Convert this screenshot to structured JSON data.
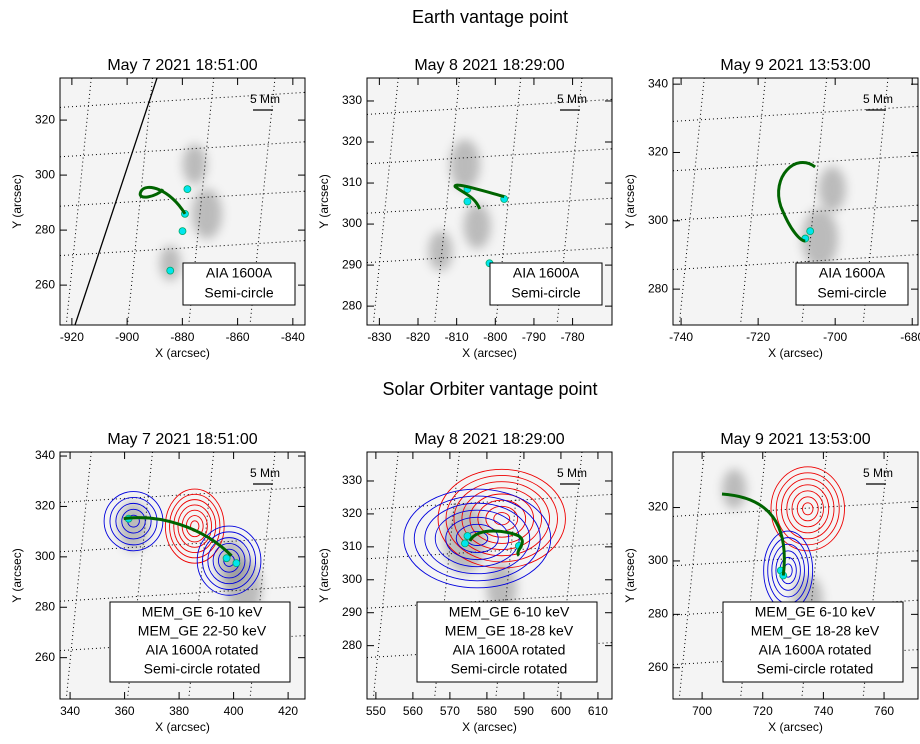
{
  "headings": [
    "Earth vantage point",
    "Solar Orbiter vantage point"
  ],
  "chart_data": [
    {
      "type": "image",
      "title": "May 7 2021 18:51:00",
      "xlabel": "X (arcsec)",
      "ylabel": "Y (arcsec)",
      "scale_label": "5 Mm",
      "xlim": [
        -924.3,
        -835.6
      ],
      "xticks": [
        -920,
        -900,
        -880,
        -860,
        -840
      ],
      "ylim": [
        245.5,
        335.3
      ],
      "yticks": [
        260,
        280,
        300,
        320
      ],
      "legend": [
        {
          "name": "AIA 1600A",
          "color": "#00e5ee"
        },
        {
          "name": "Semi-circle",
          "color": "#006400"
        }
      ]
    },
    {
      "type": "image",
      "title": "May 8 2021 18:29:00",
      "xlabel": "X (arcsec)",
      "ylabel": "Y (arcsec)",
      "scale_label": "5 Mm",
      "xlim": [
        -833.2,
        -769.8
      ],
      "xticks": [
        -830,
        -820,
        -810,
        -800,
        -790,
        -780
      ],
      "ylim": [
        275.4,
        335.6
      ],
      "yticks": [
        280,
        290,
        300,
        310,
        320,
        330
      ],
      "legend": [
        {
          "name": "AIA 1600A",
          "color": "#00e5ee"
        },
        {
          "name": "Semi-circle",
          "color": "#006400"
        }
      ]
    },
    {
      "type": "image",
      "title": "May 9 2021 13:53:00",
      "xlabel": "X (arcsec)",
      "ylabel": "Y (arcsec)",
      "scale_label": "5 Mm",
      "xlim": [
        -742.1,
        -678.5
      ],
      "xticks": [
        -740,
        -720,
        -700,
        -680
      ],
      "ylim": [
        269.5,
        341.8
      ],
      "yticks": [
        280,
        300,
        320,
        340
      ],
      "legend": [
        {
          "name": "AIA 1600A",
          "color": "#00e5ee"
        },
        {
          "name": "Semi-circle",
          "color": "#006400"
        }
      ]
    },
    {
      "type": "image",
      "title": "May 7 2021 18:51:00",
      "xlabel": "X (arcsec)",
      "ylabel": "Y (arcsec)",
      "scale_label": "5 Mm",
      "xlim": [
        336.3,
        426.2
      ],
      "xticks": [
        340,
        360,
        380,
        400,
        420
      ],
      "ylim": [
        243.6,
        341.6
      ],
      "yticks": [
        260,
        280,
        300,
        320,
        340
      ],
      "legend": [
        {
          "name": "MEM_GE 6-10 keV",
          "color": "#ee0000"
        },
        {
          "name": "MEM_GE 22-50 keV",
          "color": "#0000dd"
        },
        {
          "name": "AIA 1600A rotated",
          "color": "#00e5ee"
        },
        {
          "name": "Semi-circle rotated",
          "color": "#006400"
        }
      ]
    },
    {
      "type": "image",
      "title": "May 8 2021 18:29:00",
      "xlabel": "X (arcsec)",
      "ylabel": "Y (arcsec)",
      "scale_label": "5 Mm",
      "xlim": [
        547.6,
        613.8
      ],
      "xticks": [
        550,
        560,
        570,
        580,
        590,
        600,
        610
      ],
      "ylim": [
        263.8,
        338.8
      ],
      "yticks": [
        280,
        290,
        300,
        310,
        320,
        330
      ],
      "legend": [
        {
          "name": "MEM_GE 6-10 keV",
          "color": "#ee0000"
        },
        {
          "name": "MEM_GE 18-28 keV",
          "color": "#0000dd"
        },
        {
          "name": "AIA 1600A rotated",
          "color": "#00e5ee"
        },
        {
          "name": "Semi-circle rotated",
          "color": "#006400"
        }
      ]
    },
    {
      "type": "image",
      "title": "May 9 2021 13:53:00",
      "xlabel": "X (arcsec)",
      "ylabel": "Y (arcsec)",
      "scale_label": "5 Mm",
      "xlim": [
        690.4,
        771.2
      ],
      "xticks": [
        700,
        720,
        740,
        760
      ],
      "ylim": [
        248.3,
        340.8
      ],
      "yticks": [
        260,
        280,
        300,
        320
      ],
      "legend": [
        {
          "name": "MEM_GE 6-10 keV",
          "color": "#ee0000"
        },
        {
          "name": "MEM_GE 18-28 keV",
          "color": "#0000dd"
        },
        {
          "name": "AIA 1600A rotated",
          "color": "#00e5ee"
        },
        {
          "name": "Semi-circle rotated",
          "color": "#006400"
        }
      ]
    }
  ]
}
